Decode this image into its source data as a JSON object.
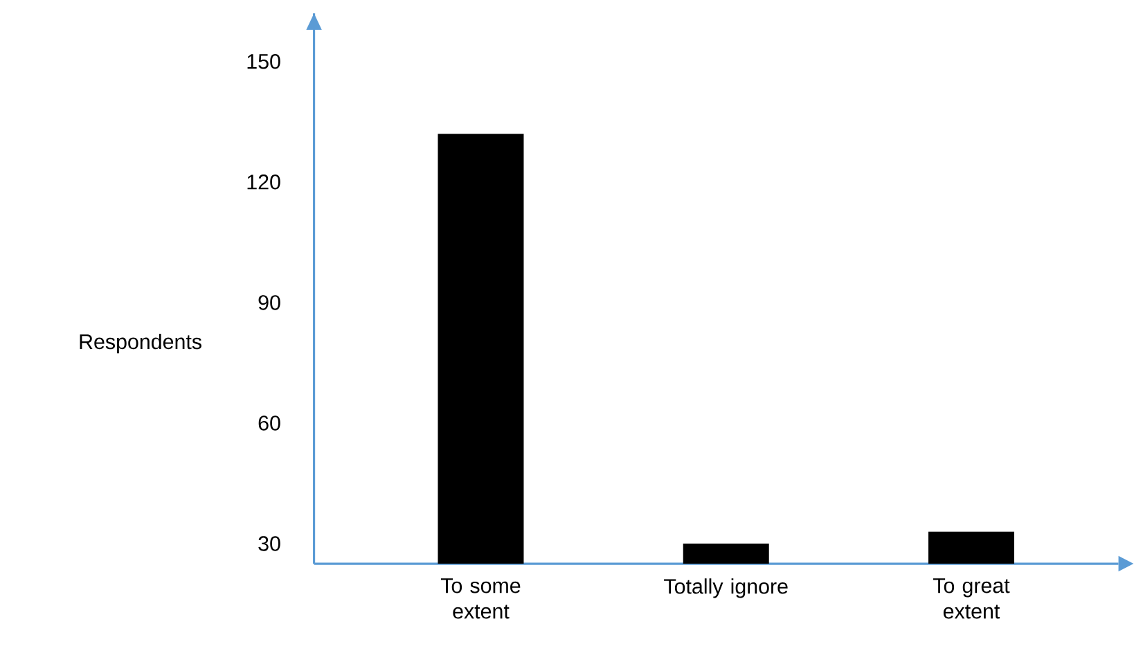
{
  "chart_data": {
    "type": "bar",
    "ylabel": "Respondents",
    "categories": [
      "To some extent",
      "Totally ignore",
      "To great extent"
    ],
    "values": [
      132,
      30,
      33
    ],
    "color": "#000000",
    "ylim": [
      25,
      162
    ],
    "yticks": [
      30,
      60,
      90,
      120,
      150
    ]
  }
}
